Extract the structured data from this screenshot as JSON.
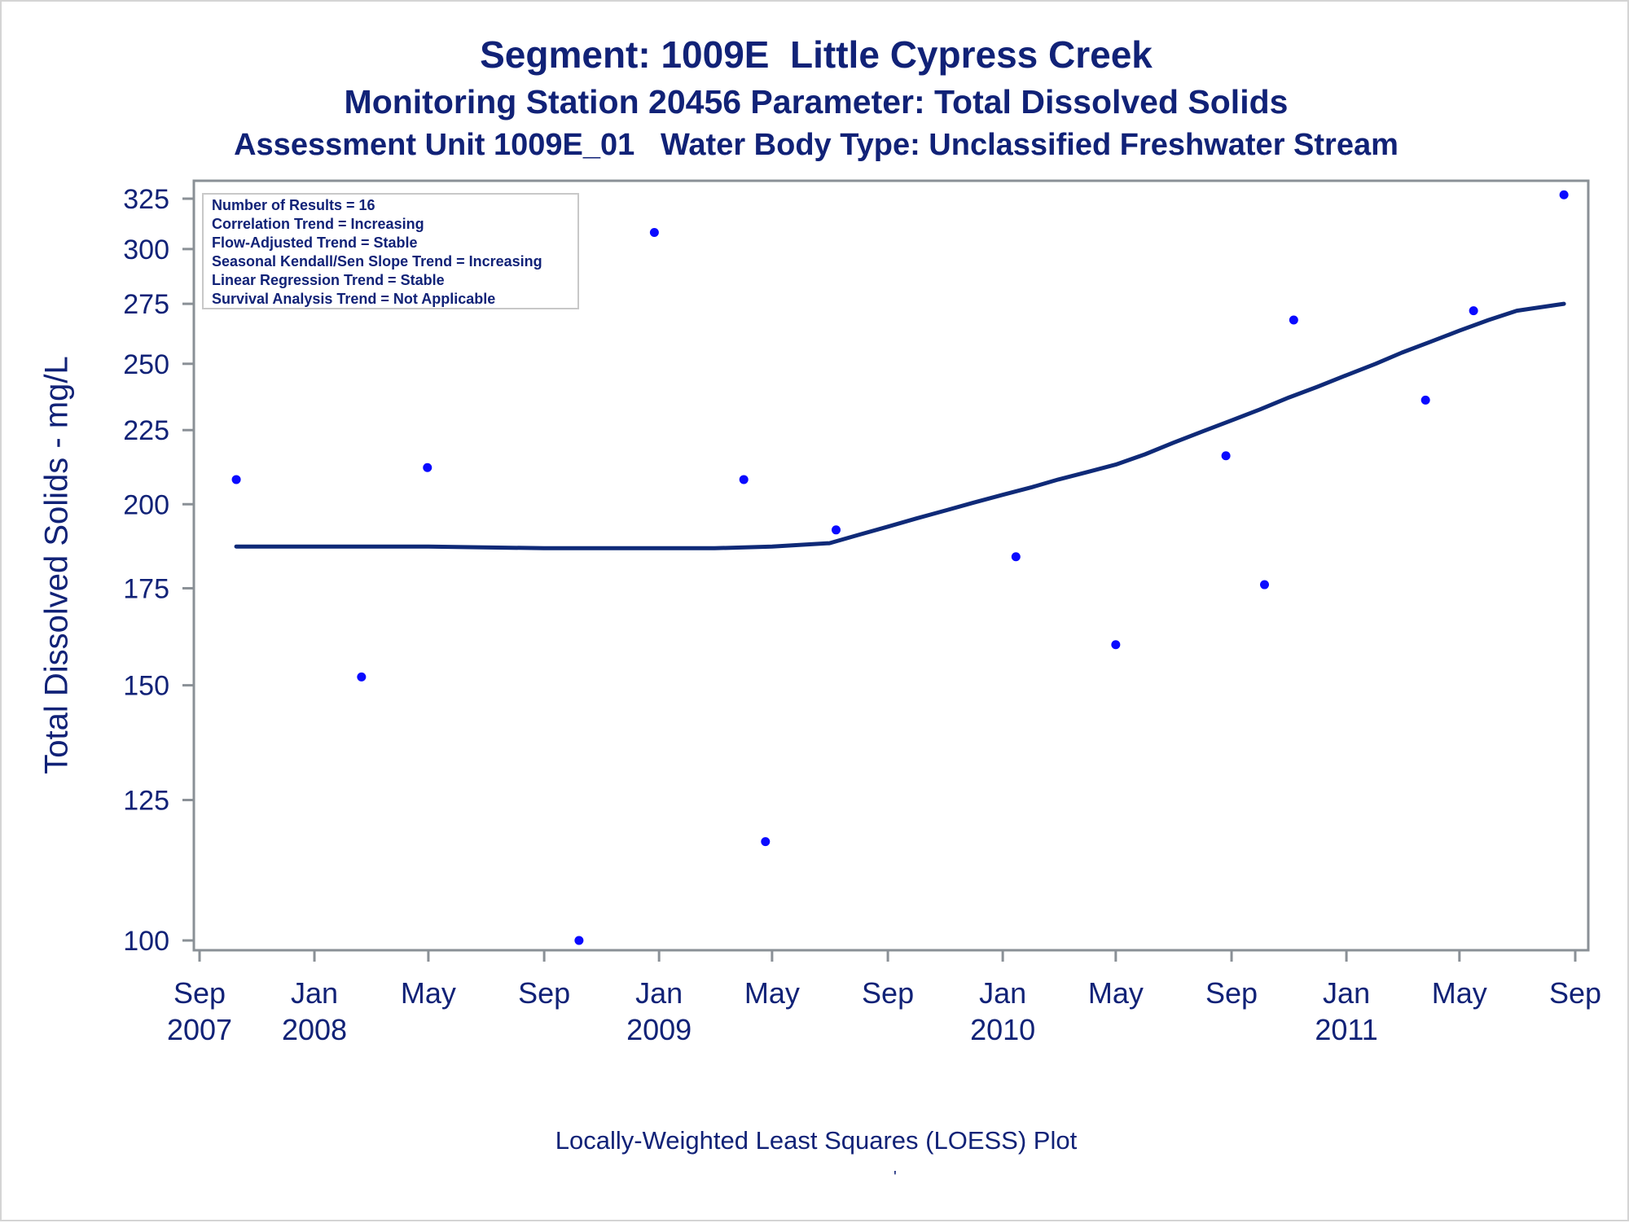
{
  "titles": {
    "line1": "Segment: 1009E  Little Cypress Creek",
    "line2": "Monitoring Station 20456 Parameter: Total Dissolved Solids",
    "line3": "Assessment Unit 1009E_01   Water Body Type: Unclassified Freshwater Stream"
  },
  "footnote": "Locally-Weighted Least Squares (LOESS) Plot",
  "footnote_mark": "'",
  "stats_box": [
    "Number of Results = 16",
    "Correlation Trend = Increasing",
    "Flow-Adjusted Trend = Stable",
    "Seasonal Kendall/Sen Slope Trend = Increasing",
    "Linear Regression Trend = Stable",
    "Survival Analysis Trend = Not Applicable"
  ],
  "colors": {
    "text": "#112277",
    "points": "#0a0aff",
    "loess_line": "#0f2a78",
    "axis": "#8a9096"
  },
  "chart_data": {
    "type": "scatter",
    "ylabel": "Total Dissolved Solids - mg/L",
    "yscale": "log",
    "ylim": [
      97,
      330
    ],
    "yticks": [
      100,
      125,
      150,
      175,
      200,
      225,
      250,
      275,
      300,
      325
    ],
    "xlim": [
      "2007-09-01",
      "2011-09-01"
    ],
    "xticks": [
      {
        "date": "2007-09-01",
        "label": "Sep",
        "year": "2007"
      },
      {
        "date": "2008-01-01",
        "label": "Jan",
        "year": "2008"
      },
      {
        "date": "2008-05-01",
        "label": "May",
        "year": ""
      },
      {
        "date": "2008-09-01",
        "label": "Sep",
        "year": ""
      },
      {
        "date": "2009-01-01",
        "label": "Jan",
        "year": "2009"
      },
      {
        "date": "2009-05-01",
        "label": "May",
        "year": ""
      },
      {
        "date": "2009-09-01",
        "label": "Sep",
        "year": ""
      },
      {
        "date": "2010-01-01",
        "label": "Jan",
        "year": "2010"
      },
      {
        "date": "2010-05-01",
        "label": "May",
        "year": ""
      },
      {
        "date": "2010-09-01",
        "label": "Sep",
        "year": ""
      },
      {
        "date": "2011-01-01",
        "label": "Jan",
        "year": "2011"
      },
      {
        "date": "2011-05-01",
        "label": "May",
        "year": ""
      },
      {
        "date": "2011-09-01",
        "label": "Sep",
        "year": ""
      }
    ],
    "points": [
      {
        "x": "2007-10-10",
        "y": 208
      },
      {
        "x": "2008-02-20",
        "y": 152
      },
      {
        "x": "2008-04-30",
        "y": 212
      },
      {
        "x": "2008-10-08",
        "y": 100
      },
      {
        "x": "2008-12-27",
        "y": 308
      },
      {
        "x": "2009-04-01",
        "y": 208
      },
      {
        "x": "2009-04-24",
        "y": 117
      },
      {
        "x": "2009-07-08",
        "y": 192
      },
      {
        "x": "2010-01-15",
        "y": 184
      },
      {
        "x": "2010-05-01",
        "y": 160
      },
      {
        "x": "2010-08-26",
        "y": 216
      },
      {
        "x": "2010-10-06",
        "y": 176
      },
      {
        "x": "2010-11-06",
        "y": 268
      },
      {
        "x": "2011-03-26",
        "y": 236
      },
      {
        "x": "2011-05-16",
        "y": 272
      },
      {
        "x": "2011-08-20",
        "y": 327
      }
    ],
    "loess": [
      {
        "x": "2007-10-10",
        "y": 187
      },
      {
        "x": "2008-01-01",
        "y": 187
      },
      {
        "x": "2008-05-01",
        "y": 187
      },
      {
        "x": "2008-09-01",
        "y": 186.5
      },
      {
        "x": "2008-11-01",
        "y": 186.5
      },
      {
        "x": "2009-01-01",
        "y": 186.5
      },
      {
        "x": "2009-03-01",
        "y": 186.5
      },
      {
        "x": "2009-05-01",
        "y": 187
      },
      {
        "x": "2009-07-01",
        "y": 188
      },
      {
        "x": "2009-08-01",
        "y": 190.5
      },
      {
        "x": "2009-09-01",
        "y": 193
      },
      {
        "x": "2009-10-01",
        "y": 195.5
      },
      {
        "x": "2009-11-01",
        "y": 198
      },
      {
        "x": "2009-12-01",
        "y": 200.5
      },
      {
        "x": "2010-01-01",
        "y": 203
      },
      {
        "x": "2010-02-01",
        "y": 205.5
      },
      {
        "x": "2010-03-01",
        "y": 208
      },
      {
        "x": "2010-04-01",
        "y": 210.5
      },
      {
        "x": "2010-05-01",
        "y": 213
      },
      {
        "x": "2010-06-01",
        "y": 216.5
      },
      {
        "x": "2010-07-01",
        "y": 220.5
      },
      {
        "x": "2010-08-01",
        "y": 224.5
      },
      {
        "x": "2010-09-01",
        "y": 228.5
      },
      {
        "x": "2010-10-01",
        "y": 232.5
      },
      {
        "x": "2010-11-01",
        "y": 237
      },
      {
        "x": "2010-12-01",
        "y": 241
      },
      {
        "x": "2011-01-01",
        "y": 245.5
      },
      {
        "x": "2011-02-01",
        "y": 250
      },
      {
        "x": "2011-03-01",
        "y": 254.5
      },
      {
        "x": "2011-04-01",
        "y": 259
      },
      {
        "x": "2011-05-01",
        "y": 263.5
      },
      {
        "x": "2011-06-01",
        "y": 268
      },
      {
        "x": "2011-07-01",
        "y": 272
      },
      {
        "x": "2011-08-20",
        "y": 275
      }
    ],
    "grid": false,
    "legend": "top-left"
  }
}
